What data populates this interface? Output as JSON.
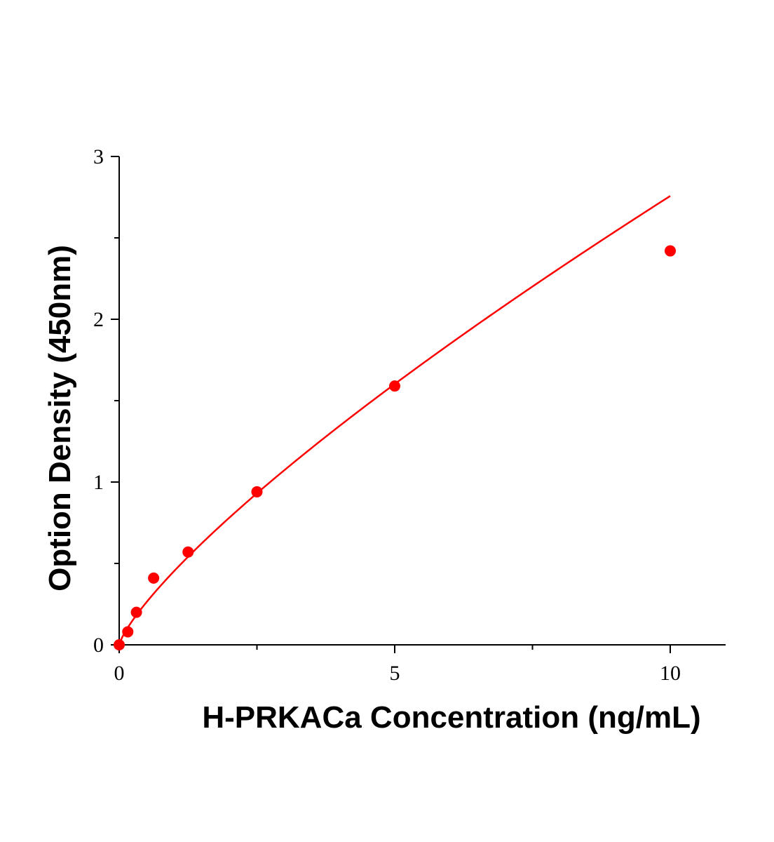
{
  "chart_data": {
    "type": "scatter",
    "title": "",
    "xlabel": "H-PRKACa Concentration (ng/mL)",
    "ylabel": "Option Density (450nm)",
    "xlim": [
      0,
      11
    ],
    "ylim": [
      0,
      3
    ],
    "x_ticks": [
      0,
      5,
      10
    ],
    "x_minor_ticks": [
      2.5,
      7.5
    ],
    "y_ticks": [
      0,
      1,
      2,
      3
    ],
    "y_minor_ticks": [
      0.5,
      1.5,
      2.5
    ],
    "grid": false,
    "legend": "none",
    "series": [
      {
        "color": "#ff0000",
        "x": [
          0,
          0.156,
          0.313,
          0.625,
          1.25,
          2.5,
          5,
          10
        ],
        "y": [
          0.0,
          0.08,
          0.2,
          0.41,
          0.57,
          0.94,
          1.59,
          2.42
        ],
        "fit_curve": true
      }
    ]
  }
}
